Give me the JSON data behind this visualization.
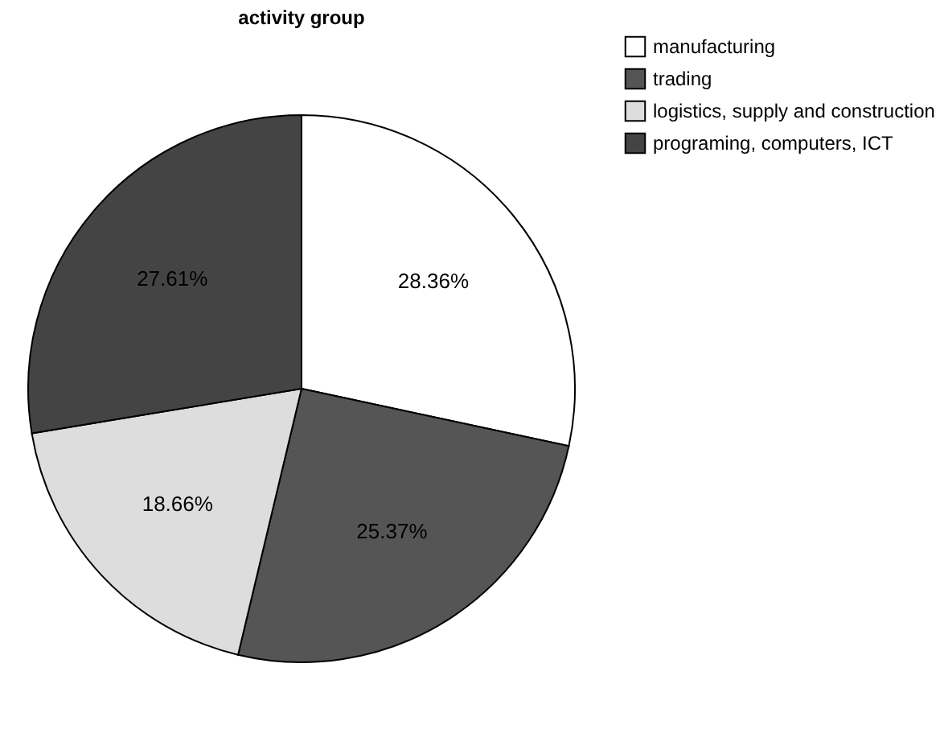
{
  "chart_data": {
    "type": "pie",
    "title": "activity group",
    "categories": [
      "manufacturing",
      "trading",
      "logistics, supply and construction",
      "programing, computers, ICT"
    ],
    "values": [
      28.36,
      25.37,
      18.66,
      27.61
    ],
    "value_labels": [
      "28.36%",
      "25.37%",
      "18.66%",
      "27.61%"
    ],
    "colors": [
      "#ffffff",
      "#555555",
      "#dddddd",
      "#444444"
    ],
    "legend": "top right"
  }
}
